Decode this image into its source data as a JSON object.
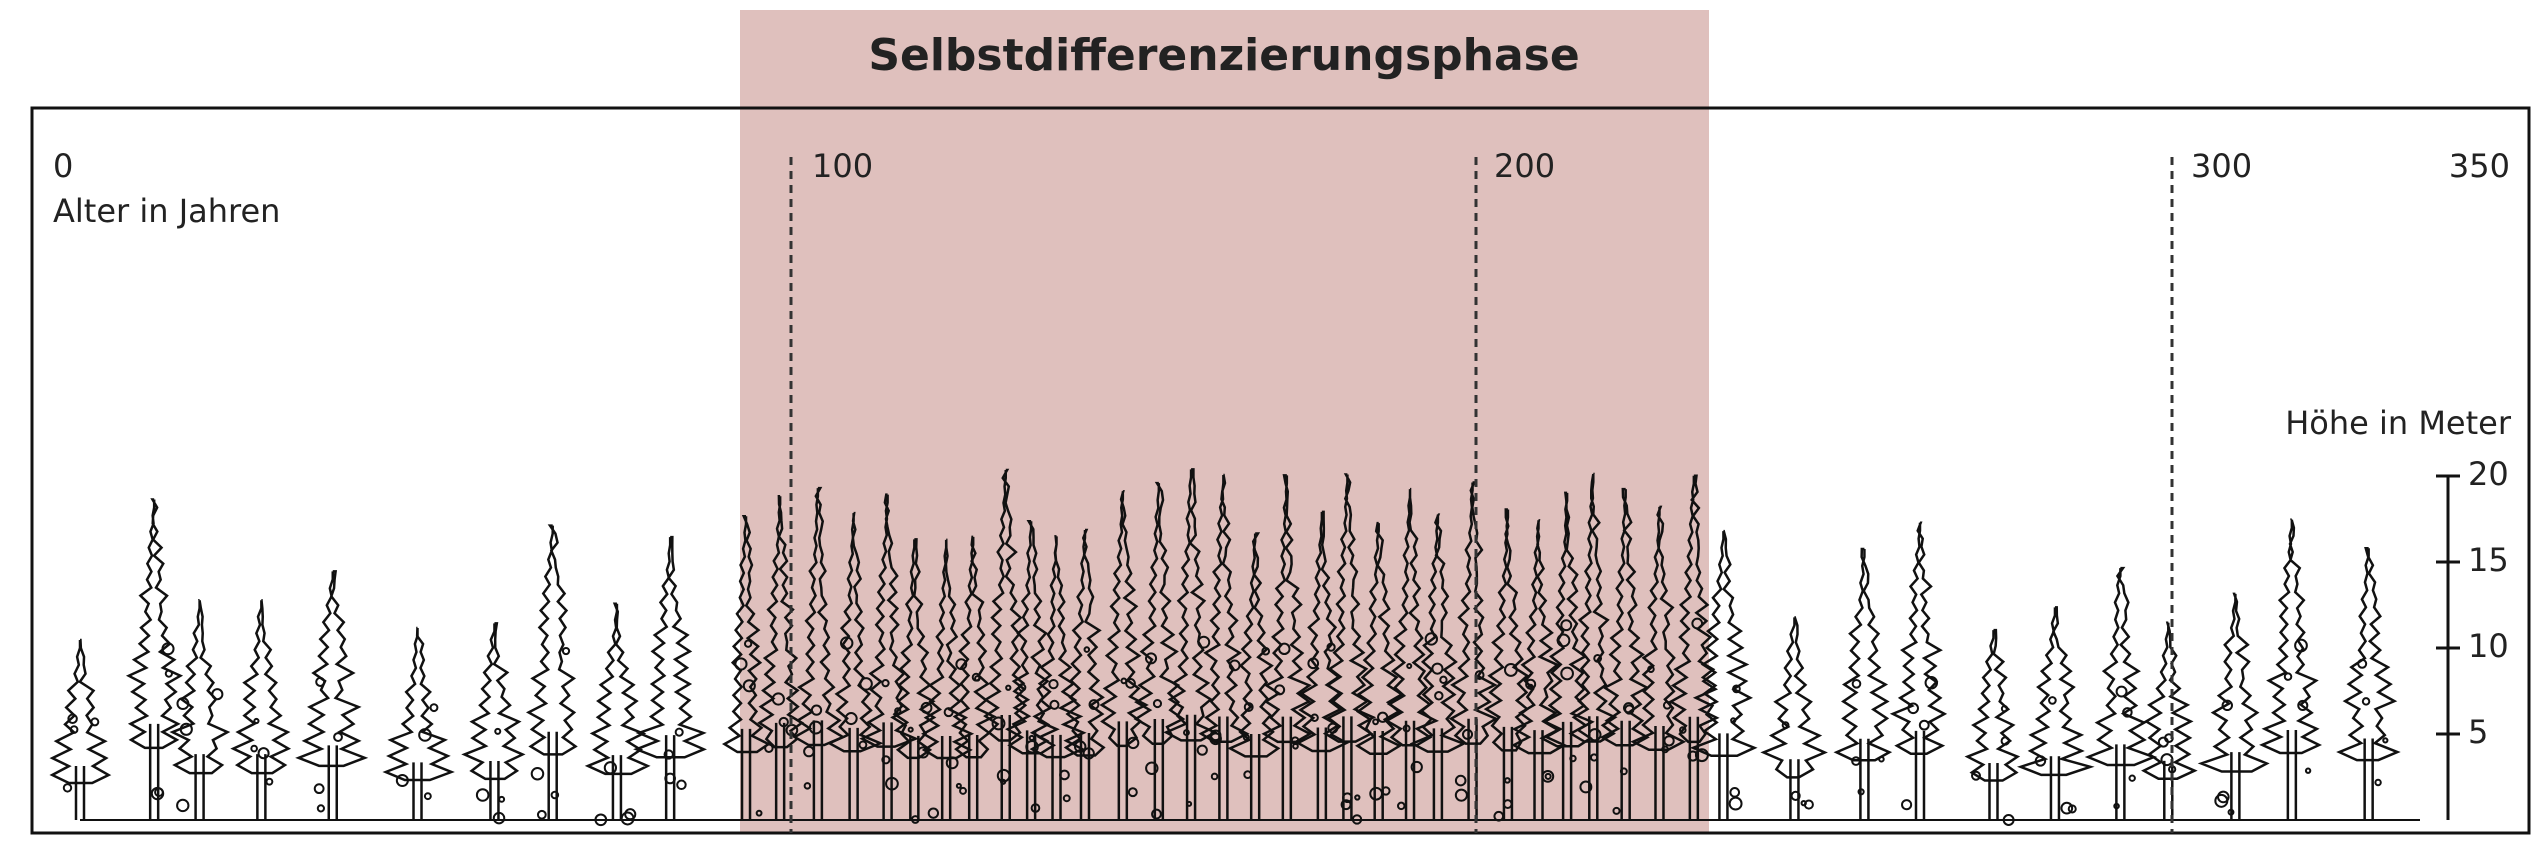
{
  "title": "Selbstdifferenzierungsphase",
  "age_axis": {
    "ticks": [
      "0",
      "100",
      "200",
      "300",
      "350"
    ],
    "label": "Alter in Jahren"
  },
  "height_axis": {
    "label": "Höhe in Meter",
    "ticks": [
      20,
      15,
      10,
      5
    ]
  }
}
